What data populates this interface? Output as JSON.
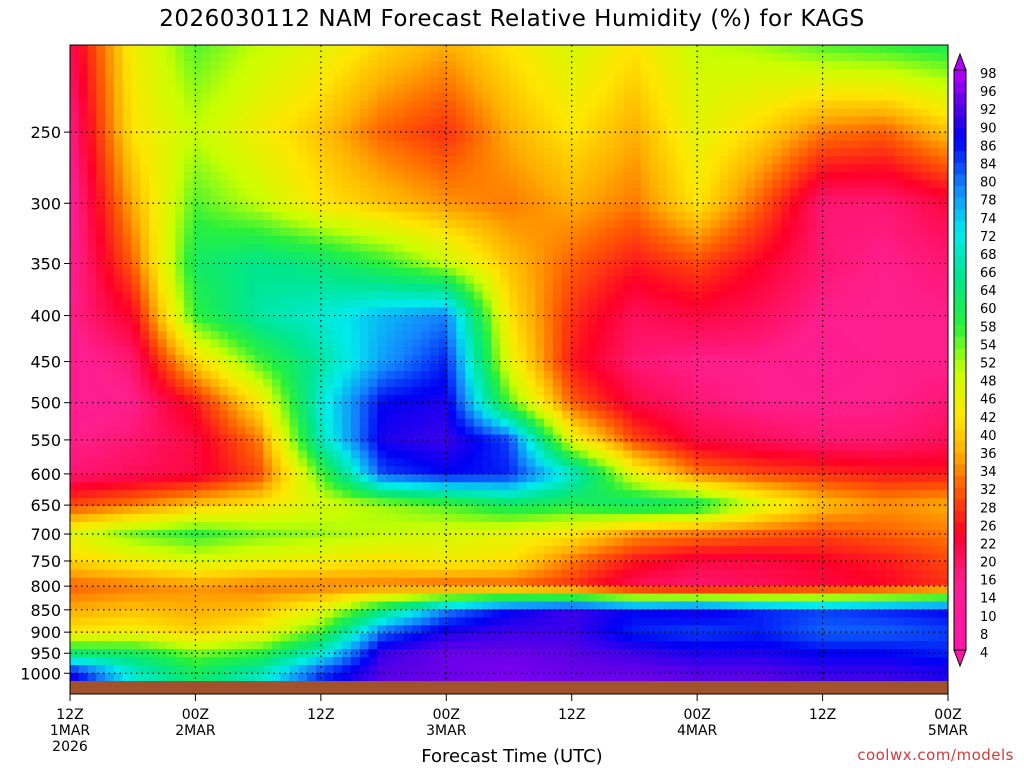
{
  "title": "2026030112 NAM Forecast Relative Humidity (%) for KAGS",
  "watermark": "coolwx.com/models",
  "chart_data": {
    "type": "heatmap",
    "title": "2026030112 NAM Forecast Relative Humidity (%) for KAGS",
    "xlabel": "Forecast Time (UTC)",
    "ylabel": "",
    "x_ticks": [
      {
        "hour": 0,
        "lines": [
          "12Z",
          "1MAR",
          "2026"
        ]
      },
      {
        "hour": 12,
        "lines": [
          "00Z",
          "2MAR"
        ]
      },
      {
        "hour": 24,
        "lines": [
          "12Z"
        ]
      },
      {
        "hour": 36,
        "lines": [
          "00Z",
          "3MAR"
        ]
      },
      {
        "hour": 48,
        "lines": [
          "12Z"
        ]
      },
      {
        "hour": 60,
        "lines": [
          "00Z",
          "4MAR"
        ]
      },
      {
        "hour": 72,
        "lines": [
          "12Z"
        ]
      },
      {
        "hour": 84,
        "lines": [
          "00Z",
          "5MAR"
        ]
      }
    ],
    "xlim": [
      0,
      84
    ],
    "y_ticks": [
      250,
      300,
      350,
      400,
      450,
      500,
      550,
      600,
      650,
      700,
      750,
      800,
      850,
      900,
      950,
      1000
    ],
    "ylim": [
      1020,
      200
    ],
    "y_scale": "log",
    "colorbar_ticks": [
      98,
      96,
      92,
      90,
      86,
      84,
      80,
      78,
      74,
      72,
      68,
      66,
      64,
      60,
      58,
      54,
      52,
      48,
      46,
      42,
      40,
      36,
      34,
      32,
      28,
      26,
      22,
      20,
      16,
      14,
      10,
      8,
      4
    ],
    "colorbar_range": [
      0,
      100
    ],
    "grid": true,
    "hours": [
      0,
      6,
      12,
      18,
      24,
      30,
      36,
      42,
      48,
      54,
      60,
      66,
      72,
      78,
      84
    ],
    "levels": [
      1000,
      950,
      900,
      850,
      800,
      750,
      700,
      650,
      600,
      550,
      500,
      450,
      400,
      350,
      300,
      250,
      200
    ],
    "rh": [
      [
        90,
        70,
        60,
        68,
        85,
        94,
        95,
        96,
        95,
        95,
        94,
        94,
        92,
        92,
        90
      ],
      [
        62,
        60,
        52,
        56,
        70,
        92,
        95,
        95,
        94,
        92,
        90,
        90,
        88,
        88,
        86
      ],
      [
        40,
        42,
        38,
        42,
        55,
        82,
        90,
        92,
        92,
        86,
        84,
        86,
        82,
        82,
        84
      ],
      [
        34,
        36,
        34,
        36,
        44,
        62,
        80,
        88,
        92,
        88,
        90,
        86,
        84,
        86,
        88
      ],
      [
        28,
        30,
        32,
        30,
        30,
        30,
        28,
        28,
        24,
        16,
        14,
        16,
        18,
        20,
        24
      ],
      [
        38,
        42,
        46,
        44,
        42,
        40,
        42,
        40,
        30,
        22,
        18,
        18,
        20,
        22,
        26
      ],
      [
        44,
        52,
        56,
        52,
        50,
        48,
        46,
        44,
        40,
        32,
        30,
        28,
        26,
        28,
        30
      ],
      [
        26,
        30,
        36,
        40,
        46,
        50,
        54,
        60,
        58,
        62,
        60,
        46,
        36,
        32,
        34
      ],
      [
        14,
        16,
        18,
        26,
        54,
        84,
        88,
        86,
        70,
        44,
        30,
        26,
        24,
        22,
        22
      ],
      [
        12,
        14,
        18,
        30,
        68,
        90,
        92,
        84,
        44,
        26,
        18,
        16,
        14,
        14,
        16
      ],
      [
        10,
        12,
        22,
        40,
        70,
        88,
        90,
        54,
        28,
        18,
        14,
        12,
        12,
        12,
        14
      ],
      [
        10,
        14,
        38,
        54,
        66,
        78,
        86,
        44,
        22,
        14,
        12,
        12,
        10,
        12,
        12
      ],
      [
        12,
        20,
        56,
        66,
        70,
        76,
        80,
        40,
        24,
        16,
        18,
        16,
        12,
        12,
        12
      ],
      [
        10,
        28,
        60,
        64,
        62,
        56,
        48,
        36,
        28,
        22,
        26,
        20,
        14,
        12,
        14
      ],
      [
        10,
        34,
        54,
        48,
        40,
        36,
        32,
        30,
        34,
        30,
        40,
        28,
        14,
        14,
        18
      ],
      [
        12,
        40,
        48,
        42,
        36,
        28,
        24,
        34,
        40,
        34,
        44,
        38,
        30,
        28,
        36
      ],
      [
        16,
        42,
        54,
        48,
        44,
        38,
        34,
        40,
        46,
        40,
        48,
        50,
        54,
        56,
        58
      ]
    ]
  }
}
